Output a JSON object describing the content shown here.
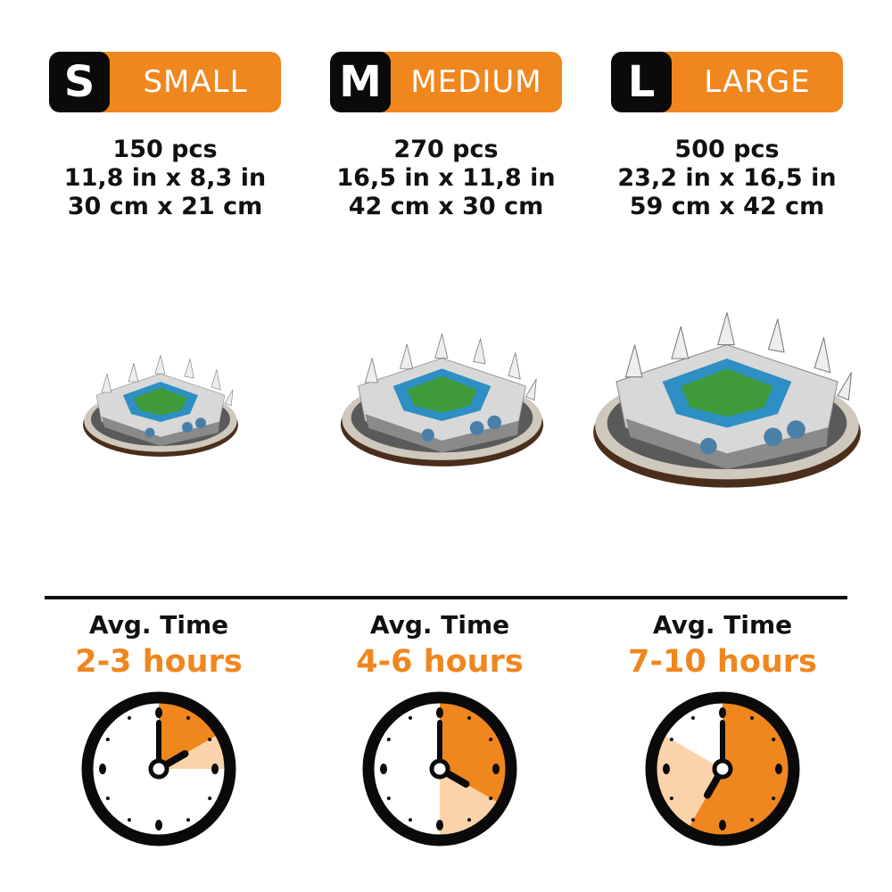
{
  "colors": {
    "accent": "#F0861E",
    "accent_light": "#FBD3AA",
    "dark": "#0a0a0a"
  },
  "sizes": [
    {
      "letter": "S",
      "label": "SMALL",
      "pieces": "150 pcs",
      "inches": "11,8 in x 8,3 in",
      "cm": "30 cm x 21 cm",
      "avg_label": "Avg. Time",
      "hours": "2-3 hours",
      "clock": {
        "min_hours": 2,
        "max_hours": 3
      }
    },
    {
      "letter": "M",
      "label": "MEDIUM",
      "pieces": "270 pcs",
      "inches": "16,5 in x 11,8 in",
      "cm": "42 cm x 30 cm",
      "avg_label": "Avg. Time",
      "hours": "4-6 hours",
      "clock": {
        "min_hours": 4,
        "max_hours": 6
      }
    },
    {
      "letter": "L",
      "label": "LARGE",
      "pieces": "500 pcs",
      "inches": "23,2 in x 16,5 in",
      "cm": "59 cm x 42 cm",
      "avg_label": "Avg. Time",
      "hours": "7-10 hours",
      "clock": {
        "min_hours": 7,
        "max_hours": 10
      }
    }
  ]
}
